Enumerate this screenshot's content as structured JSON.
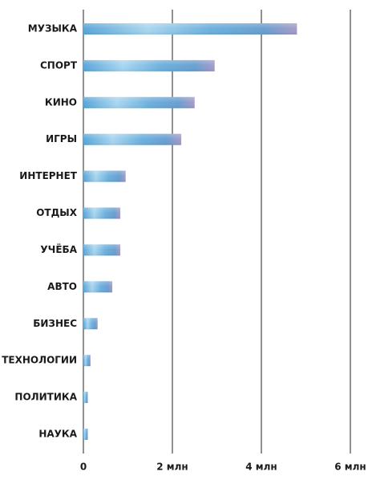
{
  "chart_data": {
    "type": "barh",
    "categories": [
      "МУЗЫКА",
      "СПОРТ",
      "КИНО",
      "ИГРЫ",
      "ИНТЕРНЕТ",
      "ОТДЫХ",
      "УЧЁБА",
      "АВТО",
      "БИЗНЕС",
      "ТЕХНОЛОГИИ",
      "ПОЛИТИКА",
      "НАУКА"
    ],
    "values": [
      4.8,
      2.95,
      2.5,
      2.2,
      0.95,
      0.83,
      0.83,
      0.65,
      0.32,
      0.16,
      0.1,
      0.1
    ],
    "color": "#6fb3de",
    "xlim": [
      0,
      6
    ],
    "xticks": [
      0,
      {
        "value": 2,
        "label": "2 млн"
      },
      {
        "value": 4,
        "label": "4 млн"
      },
      {
        "value": 6,
        "label": "6 млн"
      }
    ],
    "grid": true
  }
}
